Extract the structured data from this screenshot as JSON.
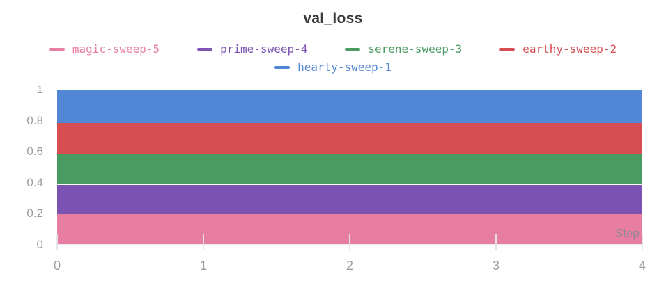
{
  "title": "val_loss",
  "axes": {
    "x_axis_label": "Step",
    "x_tick_labels": [
      "0",
      "1",
      "2",
      "3",
      "4"
    ],
    "y_tick_labels": [
      "0",
      "0.2",
      "0.4",
      "0.6",
      "0.8",
      "1"
    ]
  },
  "colors": {
    "background": "#ffffff",
    "title_text": "#3a3a3e",
    "tick_text": "#9b9ba0",
    "axis_line": "#e9e9ed",
    "step_label_text": "#8f8a94",
    "magic_pink": "#e87da2",
    "prime_purple": "#7c53b3",
    "serene_green": "#4a9b62",
    "earthy_red": "#d64e52",
    "hearty_blue": "#5287d6"
  },
  "chart_data": {
    "type": "area",
    "stacked": true,
    "title": "val_loss",
    "xlabel": "Step",
    "ylabel": "",
    "xlim": [
      0,
      4
    ],
    "ylim": [
      0,
      1
    ],
    "x_ticks": [
      0,
      1,
      2,
      3,
      4
    ],
    "y_ticks": [
      0,
      0.2,
      0.4,
      0.6,
      0.8,
      1
    ],
    "legend_position": "top",
    "grid": "x-ticks-only",
    "note": "Each series is a flat constant line from x=0 to x=4; filled areas are stacked bottom-to-top in the order listed (legend order).",
    "series": [
      {
        "name": "magic-sweep-5",
        "color": "#e87da2",
        "value": 0.197,
        "x": [
          0,
          4
        ],
        "y": [
          0.197,
          0.197
        ],
        "stack_bottom": 0.0,
        "stack_top": 0.197
      },
      {
        "name": "prime-sweep-4",
        "color": "#7c53b3",
        "value": 0.191,
        "x": [
          0,
          4
        ],
        "y": [
          0.191,
          0.191
        ],
        "stack_bottom": 0.197,
        "stack_top": 0.388
      },
      {
        "name": "serene-sweep-3",
        "color": "#4a9b62",
        "value": 0.195,
        "x": [
          0,
          4
        ],
        "y": [
          0.195,
          0.195
        ],
        "stack_bottom": 0.388,
        "stack_top": 0.583
      },
      {
        "name": "earthy-sweep-2",
        "color": "#d64e52",
        "value": 0.2,
        "x": [
          0,
          4
        ],
        "y": [
          0.2,
          0.2
        ],
        "stack_bottom": 0.583,
        "stack_top": 0.783
      },
      {
        "name": "hearty-sweep-1",
        "color": "#5287d6",
        "value": 0.217,
        "x": [
          0,
          4
        ],
        "y": [
          0.217,
          0.217
        ],
        "stack_bottom": 0.783,
        "stack_top": 1.0
      }
    ]
  }
}
